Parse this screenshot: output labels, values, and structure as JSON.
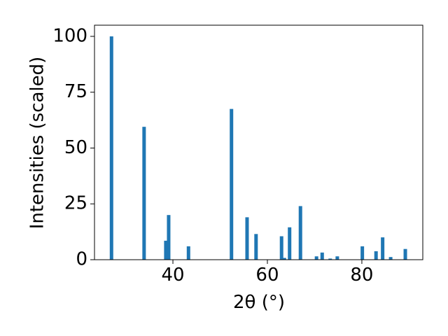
{
  "chart_data": {
    "type": "bar",
    "x_label": "2θ (°)",
    "y_label": "Intensities (scaled)",
    "x": [
      27.0,
      33.9,
      38.5,
      39.1,
      43.3,
      52.4,
      55.7,
      57.6,
      63.0,
      63.6,
      64.7,
      67.0,
      70.4,
      71.6,
      73.3,
      74.8,
      80.1,
      83.0,
      84.4,
      86.1,
      89.2
    ],
    "values": [
      100,
      59.5,
      8.5,
      20,
      6,
      67.5,
      19,
      11.5,
      10.5,
      0.8,
      14.5,
      24,
      1.5,
      3.2,
      0.5,
      1.5,
      6,
      3.8,
      10,
      1.2,
      4.8
    ],
    "color": "#1f77b4",
    "xlim": [
      23.4,
      92.9
    ],
    "xticks": [
      40,
      60,
      80
    ],
    "ylim": [
      0,
      105
    ],
    "yticks": [
      0,
      25,
      50,
      75,
      100
    ]
  }
}
